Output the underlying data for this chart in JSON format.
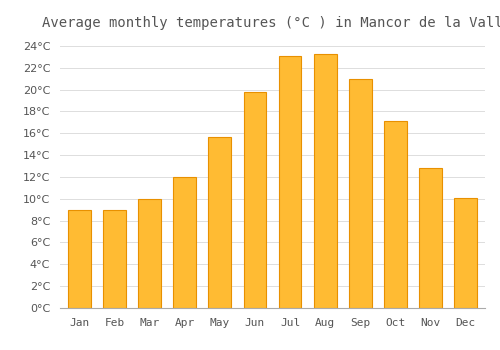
{
  "title": "Average monthly temperatures (°C ) in Mancor de la Vall",
  "months": [
    "Jan",
    "Feb",
    "Mar",
    "Apr",
    "May",
    "Jun",
    "Jul",
    "Aug",
    "Sep",
    "Oct",
    "Nov",
    "Dec"
  ],
  "values": [
    9,
    9,
    10,
    12,
    15.7,
    19.8,
    23.1,
    23.3,
    21,
    17.1,
    12.8,
    10.1
  ],
  "bar_color": "#FFBB33",
  "bar_edge_color": "#E89000",
  "background_color": "#FFFFFF",
  "plot_bg_color": "#FFFFFF",
  "grid_color": "#DDDDDD",
  "text_color": "#555555",
  "ylim": [
    0,
    25
  ],
  "yticks": [
    0,
    2,
    4,
    6,
    8,
    10,
    12,
    14,
    16,
    18,
    20,
    22,
    24
  ],
  "title_fontsize": 10,
  "tick_fontsize": 8,
  "bar_width": 0.65
}
